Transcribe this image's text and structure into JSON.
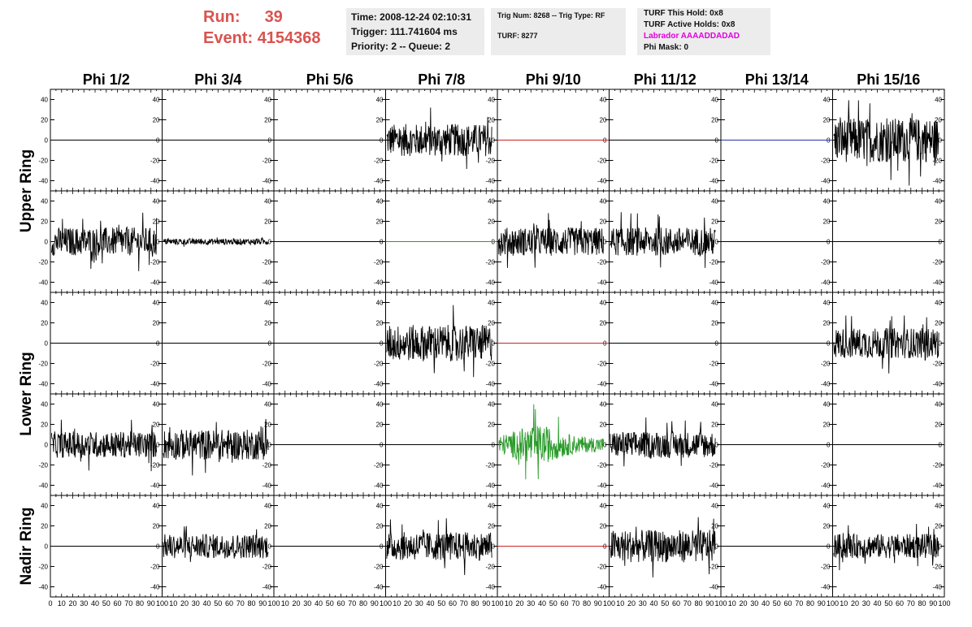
{
  "header": {
    "run_label": "Run:",
    "run_value": "39",
    "event_label": "Event:",
    "event_value": "4154368",
    "time": "Time: 2008-12-24 02:10:31",
    "trigger": "Trigger: 111.741604 ms",
    "priority": "Priority: 2 -- Queue: 2",
    "trig_num": "Trig Num: 8268 -- Trig Type: RF",
    "turf": "TURF: 8277",
    "turf_this_hold": "TURF This Hold: 0x8",
    "turf_active_holds": "TURF Active Holds: 0x8",
    "labrador": "Labrador AAAADDADAD",
    "phi_mask": "Phi Mask: 0"
  },
  "colors": {
    "run_text": "#d9534f",
    "labrador_text": "#e000e0",
    "trace_default": "#000000",
    "trace_red": "#cc2222",
    "trace_green": "#2a9a2a",
    "trace_blue": "#2233aa"
  },
  "chart_data": {
    "type": "line",
    "columns": [
      "Phi 1/2",
      "Phi 3/4",
      "Phi 5/6",
      "Phi 7/8",
      "Phi 9/10",
      "Phi 11/12",
      "Phi 13/14",
      "Phi 15/16"
    ],
    "rows": [
      "Upper Ring",
      "Upper Ring",
      "Lower Ring",
      "Lower Ring",
      "Nadir Ring"
    ],
    "row_labels": [
      {
        "text": "Upper Ring",
        "span_rows": [
          0,
          1
        ]
      },
      {
        "text": "Lower Ring",
        "span_rows": [
          2,
          3
        ]
      },
      {
        "text": "Nadir Ring",
        "span_rows": [
          4,
          4
        ]
      }
    ],
    "xlim": [
      0,
      100
    ],
    "ylim": [
      -50,
      50
    ],
    "yticks": [
      -40,
      -20,
      0,
      20,
      40
    ],
    "xticks": [
      0,
      10,
      20,
      30,
      40,
      50,
      60,
      70,
      80,
      90,
      100
    ],
    "panels": [
      [
        {
          "amp": 0,
          "color": "black"
        },
        {
          "amp": 0,
          "color": "black"
        },
        {
          "amp": 0,
          "color": "black"
        },
        {
          "amp": 16,
          "color": "black"
        },
        {
          "amp": 0,
          "color": "red"
        },
        {
          "amp": 0,
          "color": "black"
        },
        {
          "amp": 0,
          "color": "blue"
        },
        {
          "amp": 22,
          "color": "black"
        }
      ],
      [
        {
          "amp": 14,
          "color": "black"
        },
        {
          "amp": 3,
          "color": "black"
        },
        {
          "amp": 0,
          "color": "black"
        },
        {
          "amp": 0,
          "color": "green"
        },
        {
          "amp": 14,
          "color": "black"
        },
        {
          "amp": 14,
          "color": "black"
        },
        {
          "amp": 0,
          "color": "black"
        },
        {
          "amp": 0,
          "color": "black"
        }
      ],
      [
        {
          "amp": 0,
          "color": "black"
        },
        {
          "amp": 0,
          "color": "black"
        },
        {
          "amp": 0,
          "color": "black"
        },
        {
          "amp": 18,
          "color": "black"
        },
        {
          "amp": 0,
          "color": "red"
        },
        {
          "amp": 0,
          "color": "black"
        },
        {
          "amp": 0,
          "color": "black"
        },
        {
          "amp": 15,
          "color": "black"
        }
      ],
      [
        {
          "amp": 13,
          "color": "black"
        },
        {
          "amp": 15,
          "color": "black"
        },
        {
          "amp": 0,
          "color": "black"
        },
        {
          "amp": 0,
          "color": "black"
        },
        {
          "amp": 16,
          "color": "green"
        },
        {
          "amp": 13,
          "color": "black"
        },
        {
          "amp": 0,
          "color": "black"
        },
        {
          "amp": 0,
          "color": "black"
        }
      ],
      [
        {
          "amp": 0,
          "color": "black"
        },
        {
          "amp": 12,
          "color": "black"
        },
        {
          "amp": 0,
          "color": "black"
        },
        {
          "amp": 14,
          "color": "black"
        },
        {
          "amp": 0,
          "color": "red"
        },
        {
          "amp": 16,
          "color": "black"
        },
        {
          "amp": 0,
          "color": "black"
        },
        {
          "amp": 12,
          "color": "black"
        }
      ]
    ]
  }
}
